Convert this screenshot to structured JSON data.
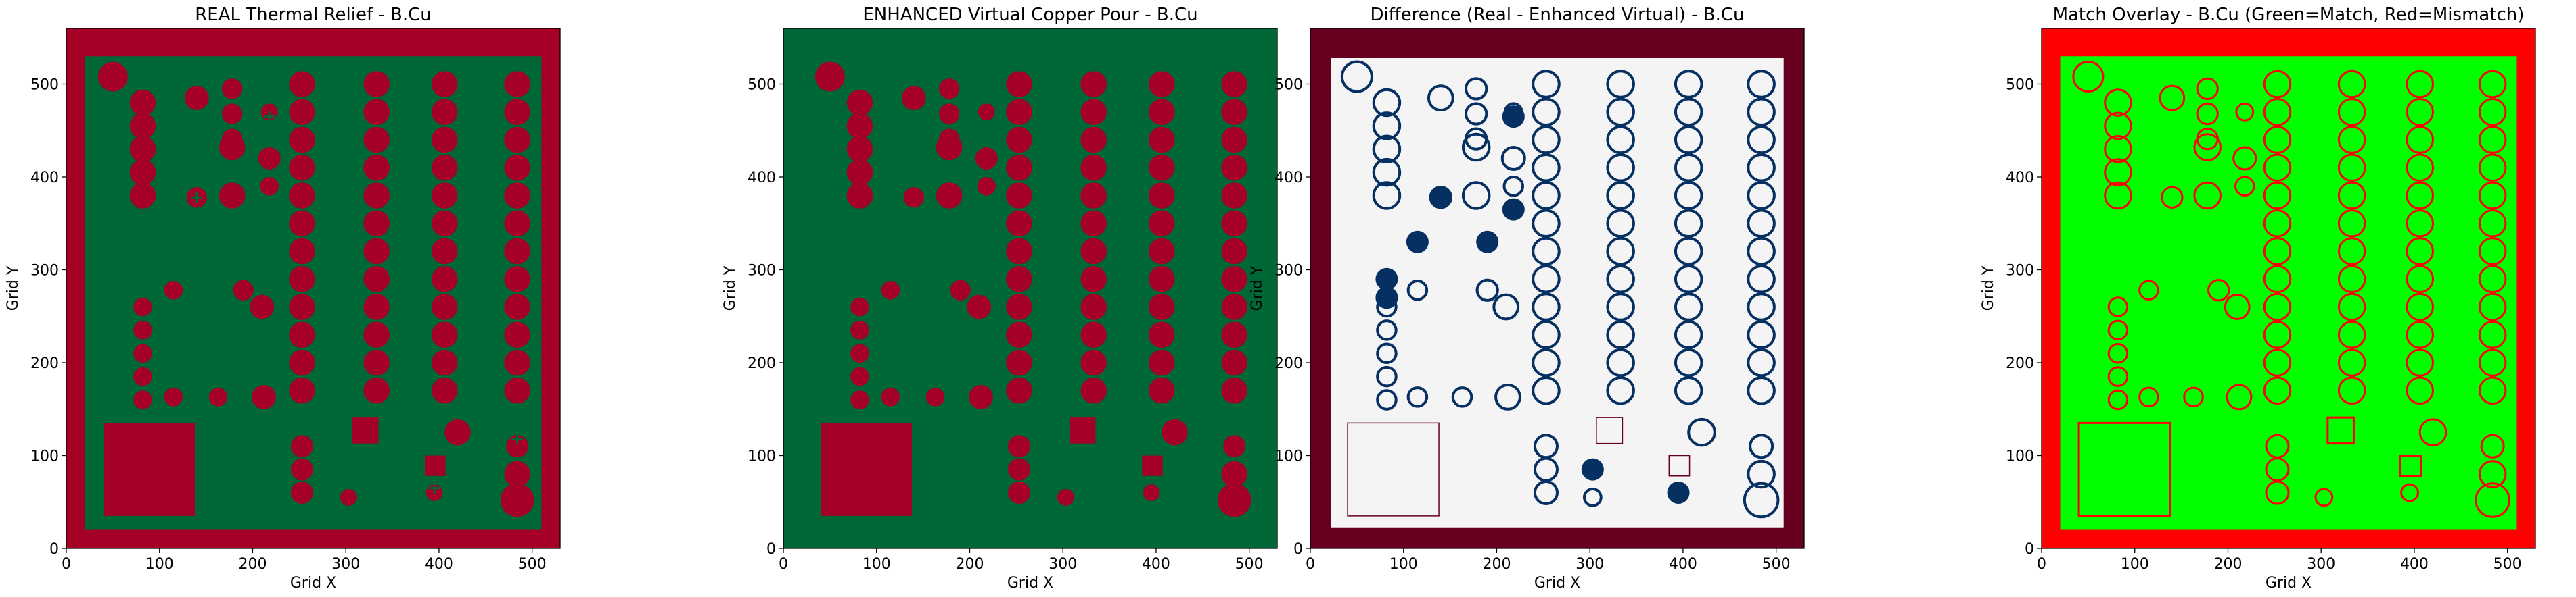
{
  "figure": {
    "colors": {
      "copper_red": "#a50026",
      "free_green": "#006837",
      "diff_background": "#f4f4f4",
      "diff_border": "#67001f",
      "diff_outline": "#053061",
      "match_green": "#00ff00",
      "mismatch_red": "#ff0000"
    }
  },
  "chart_data": [
    {
      "type": "heatmap",
      "title": "REAL Thermal Relief - B.Cu",
      "xlabel": "Grid X",
      "ylabel": "Grid Y",
      "xlim": [
        0,
        530
      ],
      "ylim": [
        0,
        560
      ],
      "xticks": [
        "0",
        "100",
        "200",
        "300",
        "400",
        "500"
      ],
      "yticks": [
        "0",
        "100",
        "200",
        "300",
        "400",
        "500"
      ],
      "variant": "real"
    },
    {
      "type": "heatmap",
      "title": "ENHANCED Virtual Copper Pour - B.Cu",
      "xlabel": "Grid X",
      "ylabel": "Grid Y",
      "xlim": [
        0,
        530
      ],
      "ylim": [
        0,
        560
      ],
      "xticks": [
        "0",
        "100",
        "200",
        "300",
        "400",
        "500"
      ],
      "yticks": [
        "0",
        "100",
        "200",
        "300",
        "400",
        "500"
      ],
      "variant": "enhanced"
    },
    {
      "type": "heatmap",
      "title": "Difference (Real - Enhanced Virtual) - B.Cu",
      "xlabel": "Grid X",
      "ylabel": "Grid Y",
      "xlim": [
        0,
        530
      ],
      "ylim": [
        0,
        560
      ],
      "xticks": [
        "0",
        "100",
        "200",
        "300",
        "400",
        "500"
      ],
      "yticks": [
        "0",
        "100",
        "200",
        "300",
        "400",
        "500"
      ],
      "variant": "difference"
    },
    {
      "type": "heatmap",
      "title": "Match Overlay - B.Cu (Green=Match, Red=Mismatch)",
      "xlabel": "Grid X",
      "ylabel": "Grid Y",
      "xlim": [
        0,
        530
      ],
      "ylim": [
        0,
        560
      ],
      "xticks": [
        "0",
        "100",
        "200",
        "300",
        "400",
        "500"
      ],
      "yticks": [
        "0",
        "100",
        "200",
        "300",
        "400",
        "500"
      ],
      "variant": "overlay"
    }
  ]
}
